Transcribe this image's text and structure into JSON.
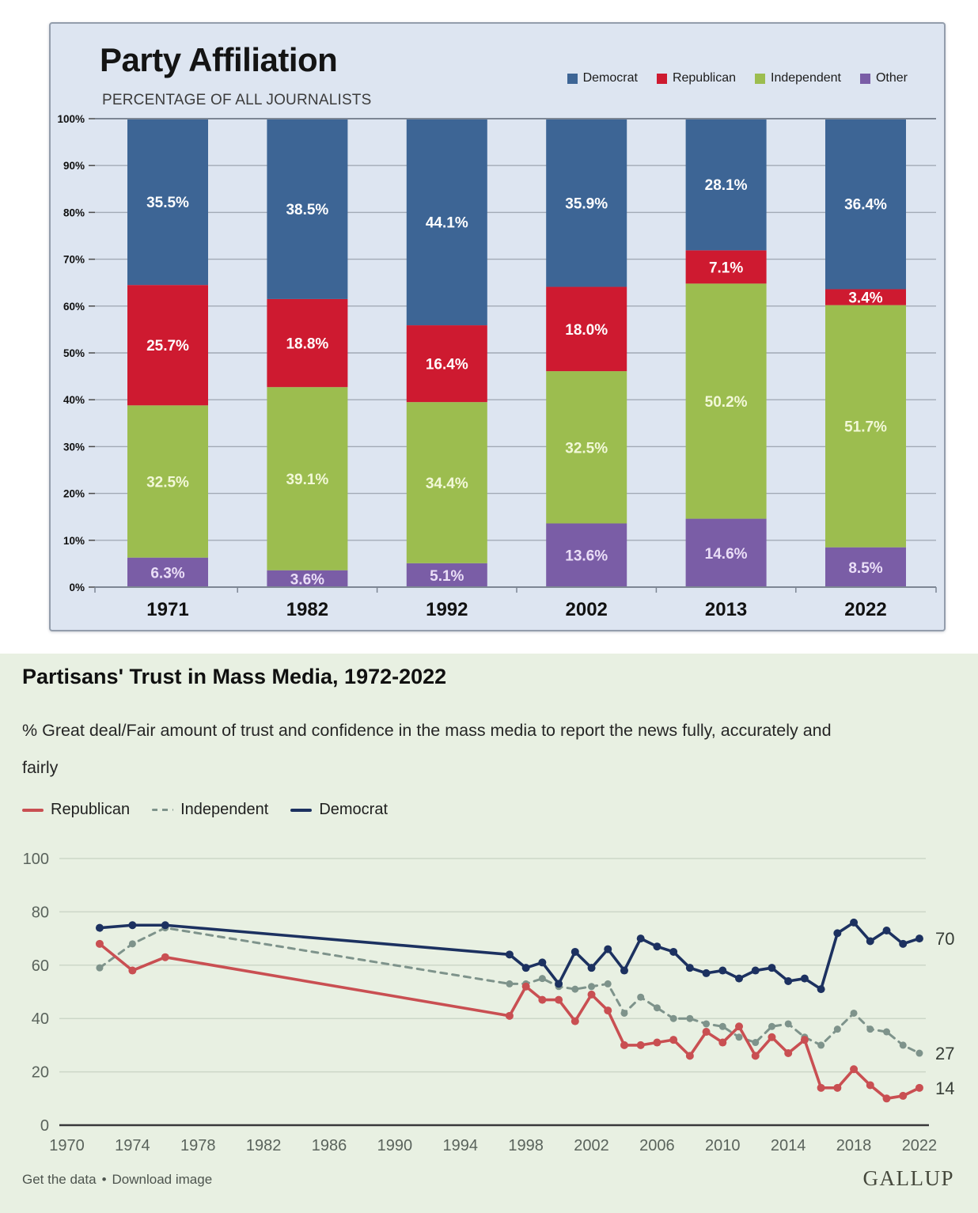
{
  "top_chart": {
    "box_border_color": "#939dac",
    "box_background": "#dde5f1"
  },
  "bottom": {
    "background": "#e8f0e2",
    "subtitle_lines": [
      "% Great deal/Fair amount of trust and confidence in the mass media to report the news fully, accurately and",
      "fairly"
    ],
    "footer": {
      "get_data": "Get the data",
      "separator": "•",
      "download": "Download image"
    },
    "brand": "GALLUP"
  },
  "chart_data": [
    {
      "type": "bar",
      "stacked": true,
      "title": "Party Affiliation",
      "subtitle": "PERCENTAGE OF ALL JOURNALISTS",
      "categories": [
        "1971",
        "1982",
        "1992",
        "2002",
        "2013",
        "2022"
      ],
      "series": [
        {
          "name": "Democrat",
          "color": "#3d6595",
          "label_color": "#ffffff",
          "values": [
            35.5,
            38.5,
            44.1,
            35.9,
            28.1,
            36.4
          ],
          "labels": [
            "35.5%",
            "38.5%",
            "44.1%",
            "35.9%",
            "28.1%",
            "36.4%"
          ]
        },
        {
          "name": "Republican",
          "color": "#ce1a30",
          "label_color": "#ffffff",
          "values": [
            25.7,
            18.8,
            16.4,
            18.0,
            7.1,
            3.4
          ],
          "labels": [
            "25.7%",
            "18.8%",
            "16.4%",
            "18.0%",
            "7.1%",
            "3.4%"
          ]
        },
        {
          "name": "Independent",
          "color": "#9cbd4f",
          "label_color": "#f2f8d8",
          "values": [
            32.5,
            39.1,
            34.4,
            32.5,
            50.2,
            51.7
          ],
          "labels": [
            "32.5%",
            "39.1%",
            "34.4%",
            "32.5%",
            "50.2%",
            "51.7%"
          ]
        },
        {
          "name": "Other",
          "color": "#7a5da6",
          "label_color": "#eadef7",
          "values": [
            6.3,
            3.6,
            5.1,
            13.6,
            14.6,
            8.5
          ],
          "labels": [
            "6.3%",
            "3.6%",
            "5.1%",
            "13.6%",
            "14.6%",
            "8.5%"
          ]
        }
      ],
      "stack_order_bottom_to_top": [
        "Other",
        "Independent",
        "Republican",
        "Democrat"
      ],
      "ylim": [
        0,
        100
      ],
      "y_ticks": [
        100,
        90,
        80,
        70,
        60,
        50,
        40,
        30,
        20,
        10,
        0
      ],
      "y_tick_labels": [
        "100%",
        "90%",
        "80%",
        "70%",
        "60%",
        "50%",
        "40%",
        "30%",
        "20%",
        "10%",
        "0%"
      ],
      "grid": true,
      "legend_position": "top-right"
    },
    {
      "type": "line",
      "title": "Partisans' Trust in Mass Media, 1972-2022",
      "subtitle": "% Great deal/Fair amount of trust and confidence in the mass media to report the news fully, accurately and fairly",
      "x": [
        1972,
        1974,
        1976,
        1997,
        1998,
        1999,
        2000,
        2001,
        2002,
        2003,
        2004,
        2005,
        2006,
        2007,
        2008,
        2009,
        2010,
        2011,
        2012,
        2013,
        2014,
        2015,
        2016,
        2017,
        2018,
        2019,
        2020,
        2021,
        2022
      ],
      "series": [
        {
          "name": "Republican",
          "color": "#c94f52",
          "style": "solid",
          "end_label": "14",
          "values": [
            68,
            58,
            63,
            41,
            52,
            47,
            47,
            39,
            49,
            43,
            30,
            30,
            31,
            32,
            26,
            35,
            31,
            37,
            26,
            33,
            27,
            32,
            14,
            14,
            21,
            15,
            10,
            11,
            14
          ]
        },
        {
          "name": "Independent",
          "color": "#7e938b",
          "style": "dashed",
          "end_label": "27",
          "values": [
            59,
            68,
            74,
            53,
            53,
            55,
            52,
            51,
            52,
            53,
            42,
            48,
            44,
            40,
            40,
            38,
            37,
            33,
            31,
            37,
            38,
            33,
            30,
            36,
            42,
            36,
            35,
            30,
            27
          ]
        },
        {
          "name": "Democrat",
          "color": "#1c3160",
          "style": "solid",
          "end_label": "70",
          "values": [
            74,
            75,
            75,
            64,
            59,
            61,
            53,
            65,
            59,
            66,
            58,
            70,
            67,
            65,
            59,
            57,
            58,
            55,
            58,
            59,
            54,
            55,
            51,
            72,
            76,
            69,
            73,
            68,
            70
          ]
        }
      ],
      "xlim": [
        1969.8,
        2023.5
      ],
      "ylim": [
        0,
        100
      ],
      "x_ticks": [
        1970,
        1974,
        1978,
        1982,
        1986,
        1990,
        1994,
        1998,
        2002,
        2006,
        2010,
        2014,
        2018,
        2022
      ],
      "x_tick_labels": [
        "1970",
        "1974",
        "1978",
        "1982",
        "1986",
        "1990",
        "1994",
        "1998",
        "2002",
        "2006",
        "2010",
        "2014",
        "2018",
        "2022"
      ],
      "y_ticks": [
        0,
        20,
        40,
        60,
        80,
        100
      ],
      "y_tick_labels": [
        "0",
        "20",
        "40",
        "60",
        "80",
        "100"
      ],
      "grid": true,
      "legend_position": "top-left"
    }
  ]
}
